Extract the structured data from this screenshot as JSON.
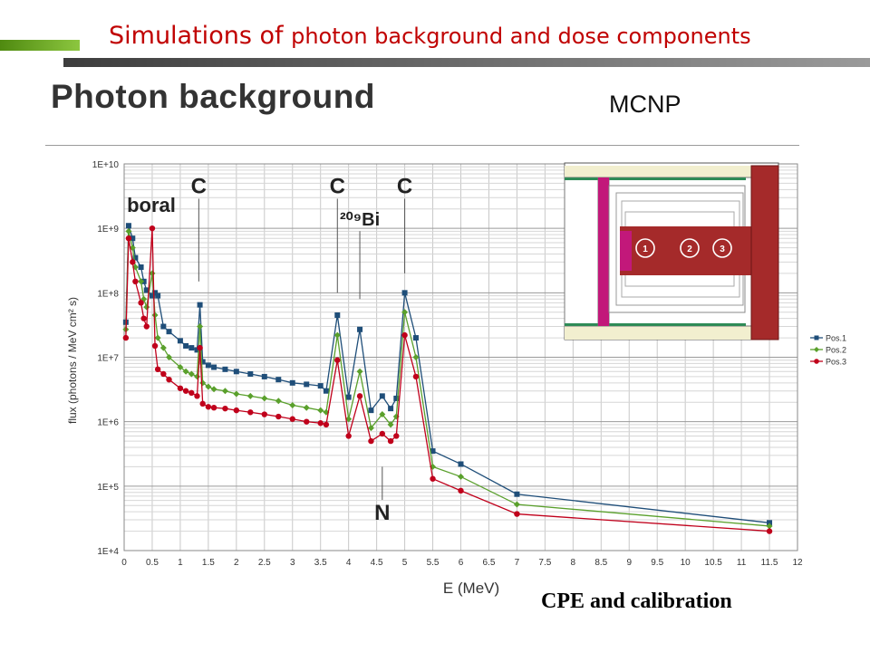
{
  "slide": {
    "title_part1": "Simulations",
    "title_part2": " of ",
    "title_part3": "photon background and dose components",
    "section_title": "Photon background",
    "code_label": "MCNP",
    "footer_label": "CPE and calibration"
  },
  "colors": {
    "title": "#c00000",
    "pos1": "#1f4e79",
    "pos2": "#5aa02c",
    "pos3": "#c0001b",
    "inset_dark": "#a52a2a",
    "inset_magenta": "#c2187a"
  },
  "inset_markers": [
    "1",
    "2",
    "3"
  ],
  "chart_data": {
    "type": "line",
    "title": "",
    "xlabel": "E (MeV)",
    "ylabel": "flux (photons / MeV cm² s)",
    "xlim": [
      0,
      12
    ],
    "ylim": [
      10000,
      10000000000
    ],
    "y_scale": "log",
    "grid": true,
    "legend_position": "right",
    "x_ticks": [
      "0",
      "0.5",
      "1",
      "1.5",
      "2",
      "2.5",
      "3",
      "3.5",
      "4",
      "4.5",
      "5",
      "5.5",
      "6",
      "6.5",
      "7",
      "7.5",
      "8",
      "8.5",
      "9",
      "9.5",
      "10",
      "10.5",
      "11",
      "11.5",
      "12"
    ],
    "y_ticks": [
      "1E+4",
      "1E+5",
      "1E+6",
      "1E+7",
      "1E+8",
      "1E+9",
      "1E+10"
    ],
    "y_tick_values": [
      10000,
      100000,
      1000000,
      10000000,
      100000000,
      1000000000,
      10000000000
    ],
    "annotations": [
      {
        "text": "boral",
        "x": 0.05,
        "y": 1800000000
      },
      {
        "text": "C",
        "x": 1.33,
        "y": 3500000000
      },
      {
        "text": "C",
        "x": 3.8,
        "y": 3500000000
      },
      {
        "text": "²⁰⁹Bi",
        "x": 4.2,
        "y": 1100000000
      },
      {
        "text": "C",
        "x": 5.0,
        "y": 3500000000
      },
      {
        "text": "N",
        "x": 4.6,
        "y": 30000
      }
    ],
    "series": [
      {
        "name": "Pos.1",
        "color": "#1f4e79",
        "marker": "square",
        "x": [
          0.03,
          0.08,
          0.15,
          0.2,
          0.3,
          0.35,
          0.4,
          0.5,
          0.55,
          0.6,
          0.7,
          0.8,
          1.0,
          1.1,
          1.2,
          1.3,
          1.35,
          1.4,
          1.5,
          1.6,
          1.8,
          2.0,
          2.25,
          2.5,
          2.75,
          3.0,
          3.25,
          3.5,
          3.6,
          3.8,
          4.0,
          4.2,
          4.4,
          4.6,
          4.75,
          4.85,
          5.0,
          5.2,
          5.5,
          6.0,
          7.0,
          11.5
        ],
        "y": [
          35000000,
          1100000000,
          700000000,
          350000000,
          250000000,
          150000000,
          110000000,
          90000000,
          100000000,
          90000000,
          30000000,
          25000000,
          18000000,
          15000000,
          14000000,
          13000000,
          65000000,
          8500000,
          7500000,
          7000000,
          6500000,
          6000000,
          5500000,
          5000000,
          4500000,
          4000000,
          3800000,
          3600000,
          3000000,
          45000000,
          2400000,
          27000000,
          1500000,
          2500000,
          1600000,
          2300000,
          100000000,
          20000000,
          350000,
          220000,
          75000,
          27000
        ]
      },
      {
        "name": "Pos.2",
        "color": "#5aa02c",
        "marker": "diamond",
        "x": [
          0.03,
          0.08,
          0.15,
          0.2,
          0.3,
          0.35,
          0.4,
          0.5,
          0.55,
          0.6,
          0.7,
          0.8,
          1.0,
          1.1,
          1.2,
          1.3,
          1.35,
          1.4,
          1.5,
          1.6,
          1.8,
          2.0,
          2.25,
          2.5,
          2.75,
          3.0,
          3.25,
          3.5,
          3.6,
          3.8,
          4.0,
          4.2,
          4.4,
          4.6,
          4.75,
          4.85,
          5.0,
          5.2,
          5.5,
          6.0,
          7.0,
          11.5
        ],
        "y": [
          27000000,
          900000000,
          500000000,
          250000000,
          150000000,
          80000000,
          60000000,
          200000000,
          45000000,
          20000000,
          14000000,
          10000000,
          7000000,
          6000000,
          5500000,
          5000000,
          30000000,
          4000000,
          3500000,
          3200000,
          3000000,
          2700000,
          2500000,
          2300000,
          2100000,
          1800000,
          1650000,
          1500000,
          1400000,
          22000000,
          1100000,
          6000000,
          800000,
          1300000,
          900000,
          1200000,
          50000000,
          10000000,
          200000,
          140000,
          52000,
          24000
        ]
      },
      {
        "name": "Pos.3",
        "color": "#c0001b",
        "marker": "circle",
        "x": [
          0.03,
          0.08,
          0.15,
          0.2,
          0.3,
          0.35,
          0.4,
          0.5,
          0.55,
          0.6,
          0.7,
          0.8,
          1.0,
          1.1,
          1.2,
          1.3,
          1.35,
          1.4,
          1.5,
          1.6,
          1.8,
          2.0,
          2.25,
          2.5,
          2.75,
          3.0,
          3.25,
          3.5,
          3.6,
          3.8,
          4.0,
          4.2,
          4.4,
          4.6,
          4.75,
          4.85,
          5.0,
          5.2,
          5.5,
          6.0,
          7.0,
          11.5
        ],
        "y": [
          20000000,
          700000000,
          300000000,
          150000000,
          70000000,
          40000000,
          30000000,
          1000000000,
          15000000,
          6500000,
          5500000,
          4500000,
          3300000,
          3000000,
          2800000,
          2500000,
          14000000,
          1900000,
          1700000,
          1650000,
          1600000,
          1500000,
          1400000,
          1300000,
          1200000,
          1100000,
          1000000,
          950000,
          900000,
          9000000,
          600000,
          2500000,
          500000,
          650000,
          500000,
          600000,
          22000000,
          5000000,
          130000,
          85000,
          37000,
          20000
        ]
      }
    ]
  }
}
